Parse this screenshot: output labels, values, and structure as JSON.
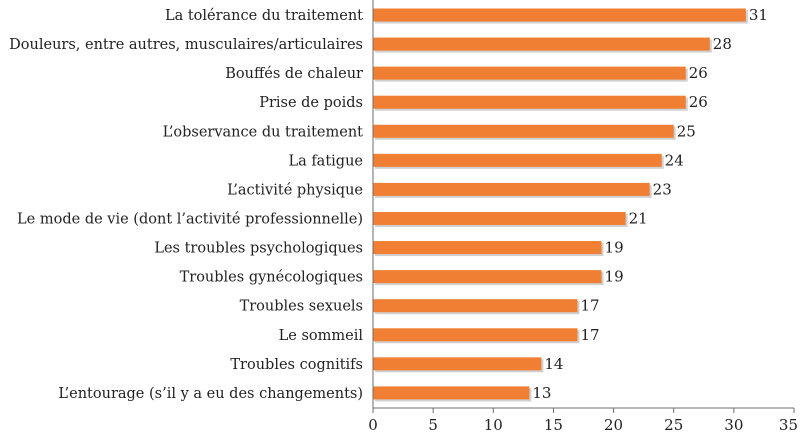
{
  "chart_data": {
    "type": "bar",
    "orientation": "horizontal",
    "categories": [
      "La tolérance du traitement",
      "Douleurs, entre autres, musculaires/articulaires",
      "Bouffés de chaleur",
      "Prise de poids",
      "L’observance du traitement",
      "La fatigue",
      "L’activité physique",
      "Le mode de vie (dont l’activité professionnelle)",
      "Les troubles psychologiques",
      "Troubles gynécologiques",
      "Troubles sexuels",
      "Le sommeil",
      "Troubles cognitifs",
      "L’entourage (s’il y a eu des changements)"
    ],
    "values": [
      31,
      28,
      26,
      26,
      25,
      24,
      23,
      21,
      19,
      19,
      17,
      17,
      14,
      13
    ],
    "value_labels": [
      "31",
      "28",
      "26",
      "26",
      "25",
      "24",
      "23",
      "21",
      "19",
      "19",
      "17",
      "17",
      "14",
      "13"
    ],
    "xlim": [
      0,
      35
    ],
    "x_ticks": [
      0,
      5,
      10,
      15,
      20,
      25,
      30,
      35
    ],
    "x_tick_labels": [
      "0",
      "5",
      "10",
      "15",
      "20",
      "25",
      "30",
      "35"
    ],
    "grid": false,
    "bar_color": "#f07f33",
    "bar_shadow_color": "#a9a9a9"
  }
}
